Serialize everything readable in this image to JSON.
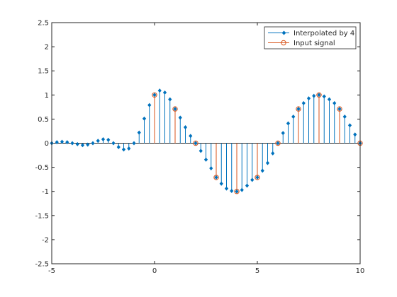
{
  "chart_data": {
    "type": "stem",
    "xlim": [
      -5,
      10
    ],
    "ylim": [
      -2.5,
      2.5
    ],
    "x_ticks": [
      -5,
      0,
      5,
      10
    ],
    "y_ticks": [
      -2.5,
      -2,
      -1.5,
      -1,
      -0.5,
      0,
      0.5,
      1,
      1.5,
      2,
      2.5
    ],
    "x_tick_labels": [
      "-5",
      "0",
      "5",
      "10"
    ],
    "y_tick_labels": [
      "-2.5",
      "-2",
      "-1.5",
      "-1",
      "-0.5",
      "0",
      "0.5",
      "1",
      "1.5",
      "2",
      "2.5"
    ],
    "grid": false,
    "legend_position": "top-right",
    "legend": [
      "Interpolated by 4",
      "Input signal"
    ],
    "colors": {
      "interpolated": "#0072BD",
      "input": "#D95319",
      "axes": "#262626"
    },
    "series": [
      {
        "name": "Interpolated by 4",
        "marker": "filled-diamond",
        "x": [
          -5,
          -4.75,
          -4.5,
          -4.25,
          -4,
          -3.75,
          -3.5,
          -3.25,
          -3,
          -2.75,
          -2.5,
          -2.25,
          -2,
          -1.75,
          -1.5,
          -1.25,
          -1,
          -0.75,
          -0.5,
          -0.25,
          0,
          0.25,
          0.5,
          0.75,
          1,
          1.25,
          1.5,
          1.75,
          2,
          2.25,
          2.5,
          2.75,
          3,
          3.25,
          3.5,
          3.75,
          4,
          4.25,
          4.5,
          4.75,
          5,
          5.25,
          5.5,
          5.75,
          6,
          6.25,
          6.5,
          6.75,
          7,
          7.25,
          7.5,
          7.75,
          8,
          8.25,
          8.5,
          8.75,
          9,
          9.25,
          9.5,
          9.75,
          10
        ],
        "y": [
          0,
          0.02,
          0.03,
          0.02,
          0,
          -0.02,
          -0.04,
          -0.03,
          0,
          0.05,
          0.08,
          0.07,
          0,
          -0.08,
          -0.13,
          -0.11,
          0,
          0.22,
          0.51,
          0.79,
          1.0,
          1.09,
          1.05,
          0.91,
          0.71,
          0.53,
          0.33,
          0.15,
          0,
          -0.16,
          -0.34,
          -0.52,
          -0.71,
          -0.84,
          -0.94,
          -0.99,
          -1.0,
          -0.97,
          -0.88,
          -0.76,
          -0.71,
          -0.57,
          -0.41,
          -0.21,
          0,
          0.21,
          0.41,
          0.55,
          0.71,
          0.83,
          0.93,
          0.98,
          1.0,
          0.97,
          0.91,
          0.83,
          0.71,
          0.55,
          0.37,
          0.18,
          0
        ]
      },
      {
        "name": "Input signal",
        "marker": "open-circle",
        "x": [
          0,
          1,
          2,
          3,
          4,
          5,
          6,
          7,
          8,
          9,
          10
        ],
        "y": [
          1.0,
          0.71,
          0,
          -0.71,
          -1.0,
          -0.71,
          0,
          0.71,
          1.0,
          0.71,
          0
        ]
      }
    ]
  }
}
